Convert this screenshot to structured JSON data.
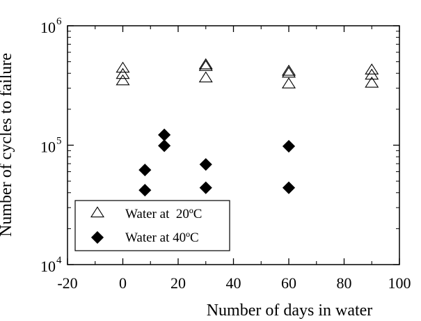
{
  "chart_data": {
    "type": "scatter",
    "title": "",
    "xlabel": "Number of days in water",
    "ylabel": "Number of cycles to failure",
    "xlim": [
      -20,
      100
    ],
    "ylim": [
      10000,
      1000000
    ],
    "yscale": "log",
    "grid": false,
    "legend_position": "bottom-left",
    "x_ticks": [
      -20,
      0,
      20,
      40,
      60,
      80,
      100
    ],
    "x_tick_labels": [
      "-20",
      "0",
      "20",
      "40",
      "60",
      "80",
      "100"
    ],
    "y_ticks": [
      10000,
      100000,
      1000000
    ],
    "y_tick_labels": [
      {
        "base": "10",
        "exp": "4"
      },
      {
        "base": "10",
        "exp": "5"
      },
      {
        "base": "10",
        "exp": "6"
      }
    ],
    "series": [
      {
        "name": "Water at  20ºC",
        "marker": "open-triangle",
        "color": "#000000",
        "points": [
          {
            "x": 0,
            "y": 440000
          },
          {
            "x": 0,
            "y": 390000
          },
          {
            "x": 0,
            "y": 345000
          },
          {
            "x": 30,
            "y": 470000
          },
          {
            "x": 30,
            "y": 455000
          },
          {
            "x": 30,
            "y": 365000
          },
          {
            "x": 60,
            "y": 415000
          },
          {
            "x": 60,
            "y": 400000
          },
          {
            "x": 60,
            "y": 325000
          },
          {
            "x": 90,
            "y": 425000
          },
          {
            "x": 90,
            "y": 385000
          },
          {
            "x": 90,
            "y": 330000
          }
        ]
      },
      {
        "name": "Water at 40ºC",
        "marker": "filled-diamond",
        "color": "#000000",
        "points": [
          {
            "x": 8,
            "y": 62000
          },
          {
            "x": 8,
            "y": 42000
          },
          {
            "x": 15,
            "y": 122000
          },
          {
            "x": 15,
            "y": 99000
          },
          {
            "x": 30,
            "y": 69000
          },
          {
            "x": 30,
            "y": 44000
          },
          {
            "x": 60,
            "y": 98000
          },
          {
            "x": 60,
            "y": 44000
          }
        ]
      }
    ]
  }
}
